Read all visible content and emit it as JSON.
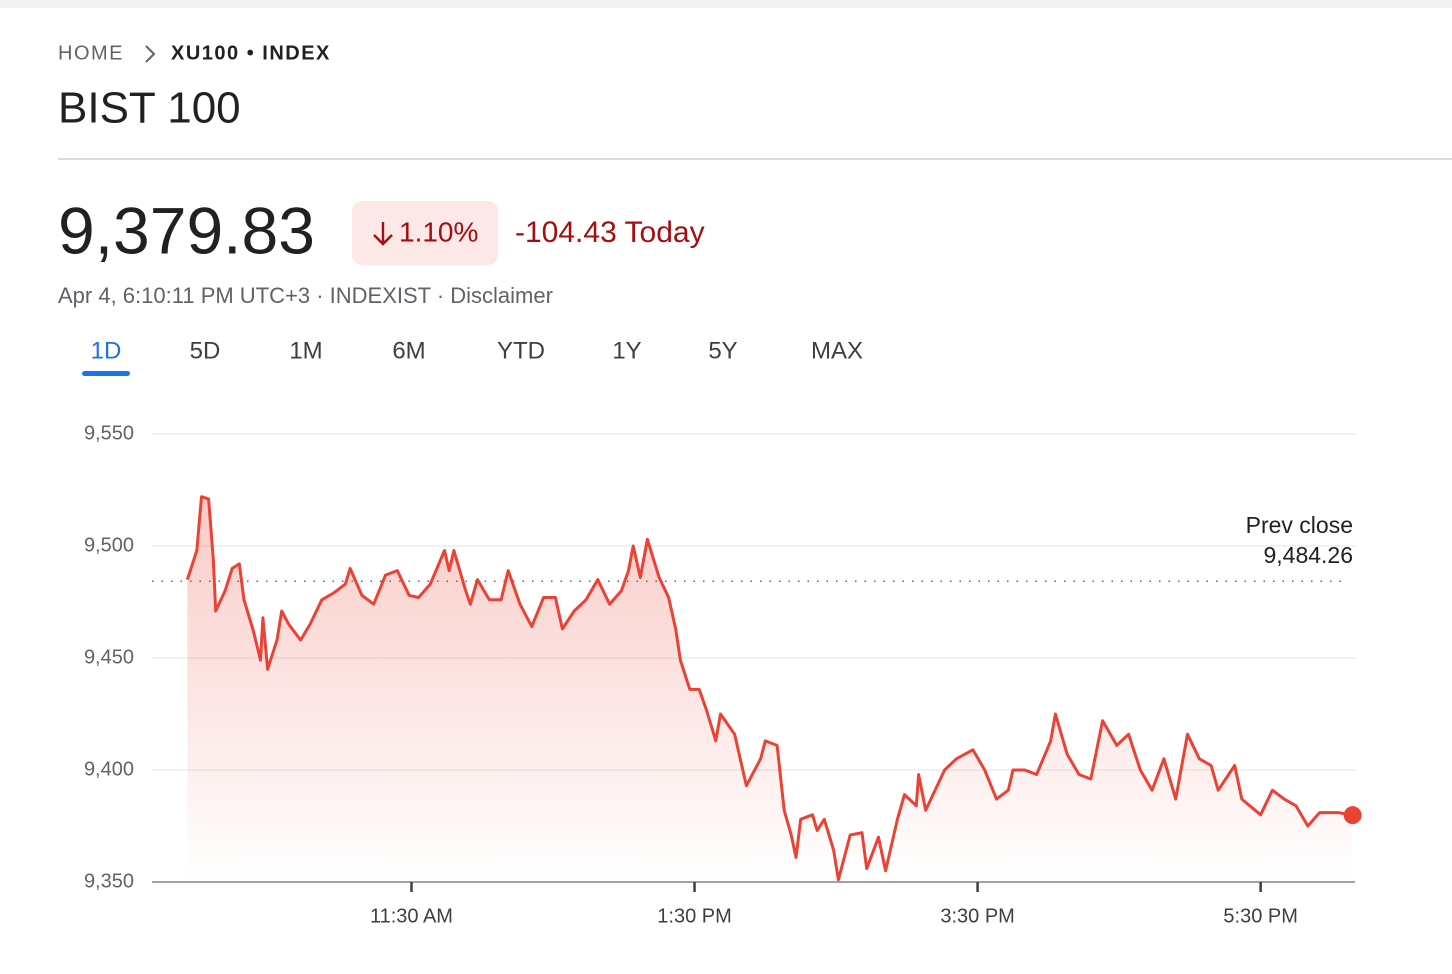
{
  "header": {
    "breadcrumb": [
      "HOME",
      "XU100 • INDEX"
    ],
    "title": "BIST 100",
    "price": "9,379.83",
    "change_percent": "1.10%",
    "change_today": "-104.43 Today",
    "meta": "Apr 4, 6:10:11 PM UTC+3 · INDEXIST · Disclaimer",
    "tabs": [
      "1D",
      "5D",
      "1M",
      "6M",
      "YTD",
      "1Y",
      "5Y",
      "MAX"
    ],
    "selected_tab": "1D"
  },
  "chart_data": {
    "type": "line",
    "color": "#ea4335",
    "grid": true,
    "x": [
      595,
      599,
      601,
      604,
      606,
      607,
      611,
      614,
      617,
      619,
      623,
      626,
      627,
      629,
      633,
      635,
      638,
      643,
      647,
      652,
      657,
      662,
      664,
      669,
      674,
      679,
      684,
      689,
      693,
      698,
      704,
      706,
      708,
      713,
      715,
      718,
      723,
      728,
      731,
      736,
      741,
      746,
      751,
      754,
      759,
      764,
      769,
      774,
      779,
      782,
      784,
      787,
      790,
      795,
      799,
      802,
      804,
      808,
      812,
      815,
      819,
      821,
      827,
      832,
      838,
      840,
      845,
      848,
      851,
      853,
      855,
      860,
      862,
      865,
      869,
      871,
      876,
      881,
      883,
      888,
      891,
      896,
      899,
      904,
      905,
      908,
      916,
      921,
      928,
      933,
      938,
      943,
      945,
      950,
      955,
      961,
      963,
      968,
      973,
      978,
      983,
      989,
      994,
      999,
      1004,
      1009,
      1014,
      1019,
      1024,
      1029,
      1032,
      1039,
      1042,
      1050,
      1055,
      1060,
      1065,
      1070,
      1075,
      1083,
      1089
    ],
    "values": [
      9485,
      9498,
      9522,
      9521,
      9494,
      9471,
      9480,
      9490,
      9492,
      9476,
      9462,
      9449,
      9468,
      9445,
      9458,
      9471,
      9465,
      9458,
      9465,
      9476,
      9479,
      9483,
      9490,
      9478,
      9474,
      9487,
      9489,
      9478,
      9477,
      9483,
      9498,
      9489,
      9498,
      9480,
      9474,
      9485,
      9476,
      9476,
      9489,
      9474,
      9464,
      9477,
      9477,
      9463,
      9471,
      9476,
      9485,
      9474,
      9480,
      9489,
      9500,
      9486,
      9503,
      9486,
      9477,
      9463,
      9449,
      9436,
      9436,
      9427,
      9413,
      9425,
      9416,
      9393,
      9405,
      9413,
      9411,
      9382,
      9371,
      9361,
      9378,
      9380,
      9373,
      9378,
      9364,
      9351,
      9371,
      9372,
      9356,
      9370,
      9355,
      9378,
      9389,
      9384,
      9398,
      9382,
      9400,
      9405,
      9409,
      9400,
      9387,
      9391,
      9400,
      9400,
      9398,
      9413,
      9425,
      9407,
      9398,
      9396,
      9422,
      9411,
      9416,
      9400,
      9391,
      9405,
      9387,
      9416,
      9405,
      9402,
      9391,
      9402,
      9387,
      9380,
      9391,
      9387,
      9384,
      9375,
      9381,
      9381,
      9379.83
    ],
    "xlim": [
      580,
      1090
    ],
    "xticks": [
      {
        "value": 690,
        "label": "11:30 AM"
      },
      {
        "value": 810,
        "label": "1:30 PM"
      },
      {
        "value": 930,
        "label": "3:30 PM"
      },
      {
        "value": 1050,
        "label": "5:30 PM"
      }
    ],
    "ylim": [
      9350,
      9550
    ],
    "yticks": [
      {
        "value": 9350,
        "label": "9,350"
      },
      {
        "value": 9400,
        "label": "9,400"
      },
      {
        "value": 9450,
        "label": "9,450"
      },
      {
        "value": 9500,
        "label": "9,500"
      },
      {
        "value": 9550,
        "label": "9,550"
      }
    ],
    "prev_close": {
      "label": "Prev close",
      "value": 9484.26,
      "value_label": "9,484.26"
    }
  }
}
